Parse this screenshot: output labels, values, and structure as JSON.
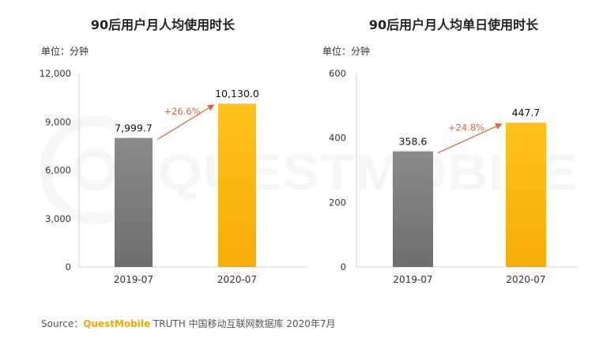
{
  "source": {
    "label": "Source：",
    "brand": "QuestMobile",
    "rest": " TRUTH 中国移动互联网数据库 2020年7月"
  },
  "watermark": "QUESTMOBILE",
  "colors": {
    "bar_2019": "#8c8c8c",
    "bar_2020": "#fdbf1b",
    "growth": "#e0643c",
    "source_brand": "#f5a800"
  },
  "chart_data": [
    {
      "type": "bar",
      "title": "90后用户月人均使用时长",
      "unit": "单位：分钟",
      "categories": [
        "2019-07",
        "2020-07"
      ],
      "values": [
        7999.7,
        10130.0
      ],
      "value_labels": [
        "7,999.7",
        "10,130.0"
      ],
      "ylim": [
        0,
        12000
      ],
      "yticks": [
        0,
        3000,
        6000,
        9000,
        12000
      ],
      "ytick_labels": [
        "0",
        "3,000",
        "6,000",
        "9,000",
        "12,000"
      ],
      "growth": "+26.6%",
      "grid": false,
      "legend": "none"
    },
    {
      "type": "bar",
      "title": "90后用户月人均单日使用时长",
      "unit": "单位：分钟",
      "categories": [
        "2019-07",
        "2020-07"
      ],
      "values": [
        358.6,
        447.7
      ],
      "value_labels": [
        "358.6",
        "447.7"
      ],
      "ylim": [
        0,
        600
      ],
      "yticks": [
        0,
        200,
        400,
        600
      ],
      "ytick_labels": [
        "0",
        "200",
        "400",
        "600"
      ],
      "growth": "+24.8%",
      "grid": false,
      "legend": "none"
    }
  ]
}
